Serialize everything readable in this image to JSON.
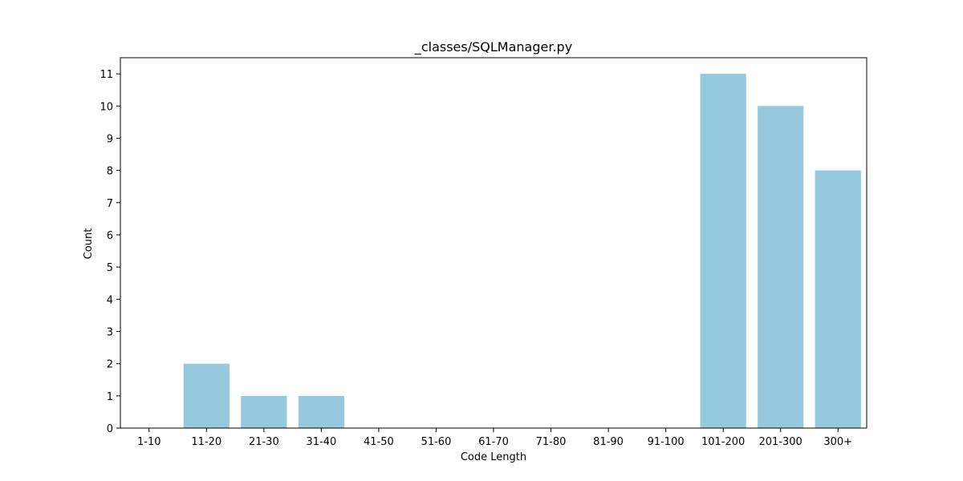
{
  "chart_data": {
    "type": "bar",
    "title": "_classes/SQLManager.py",
    "xlabel": "Code Length",
    "ylabel": "Count",
    "categories": [
      "1-10",
      "11-20",
      "21-30",
      "31-40",
      "41-50",
      "51-60",
      "61-70",
      "71-80",
      "81-90",
      "91-100",
      "101-200",
      "201-300",
      "300+"
    ],
    "values": [
      0,
      2,
      1,
      1,
      0,
      0,
      0,
      0,
      0,
      0,
      11,
      10,
      8
    ],
    "ylim": [
      0,
      11.5
    ],
    "yticks": [
      "0",
      "1",
      "2",
      "3",
      "4",
      "5",
      "6",
      "7",
      "8",
      "9",
      "10",
      "11"
    ],
    "grid": false,
    "bar_color": "#96c9de"
  }
}
